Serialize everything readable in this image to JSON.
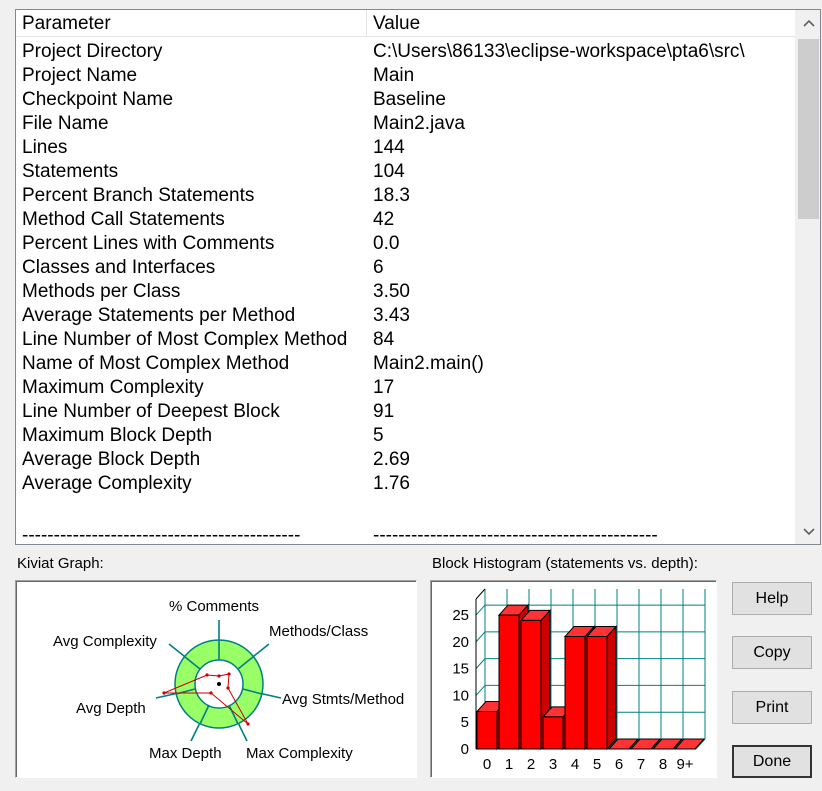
{
  "table": {
    "headers": [
      "Parameter",
      "Value"
    ],
    "rows": [
      [
        "Project Directory",
        "C:\\Users\\86133\\eclipse-workspace\\pta6\\src\\"
      ],
      [
        "Project Name",
        "Main"
      ],
      [
        "Checkpoint Name",
        "Baseline"
      ],
      [
        "File Name",
        "Main2.java"
      ],
      [
        "Lines",
        "144"
      ],
      [
        "Statements",
        "104"
      ],
      [
        "Percent Branch Statements",
        "18.3"
      ],
      [
        "Method Call Statements",
        "42"
      ],
      [
        "Percent Lines with Comments",
        "0.0"
      ],
      [
        "Classes and Interfaces",
        "6"
      ],
      [
        "Methods per Class",
        "3.50"
      ],
      [
        "Average Statements per Method",
        "3.43"
      ],
      [
        "Line Number of Most Complex Method",
        "84"
      ],
      [
        "Name of Most Complex Method",
        "Main2.main()"
      ],
      [
        "Maximum Complexity",
        "17"
      ],
      [
        "Line Number of Deepest Block",
        "91"
      ],
      [
        "Maximum Block Depth",
        "5"
      ],
      [
        "Average Block Depth",
        "2.69"
      ],
      [
        "Average Complexity",
        "1.76"
      ]
    ],
    "separator_left": "--------------------------------------------",
    "separator_right": "---------------------------------------------",
    "scroll_up_icon": "chevron-up",
    "scroll_down_icon": "chevron-down"
  },
  "kiviat": {
    "title": "Kiviat Graph:",
    "axes": [
      "% Comments",
      "Methods/Class",
      "Avg Stmts/Method",
      "Max Complexity",
      "Max Depth",
      "Avg Depth",
      "Avg Complexity"
    ]
  },
  "histogram": {
    "title": "Block Histogram (statements vs. depth):"
  },
  "buttons": {
    "help": "Help",
    "copy": "Copy",
    "print": "Print",
    "done": "Done"
  },
  "colors": {
    "bar": "#ff0000",
    "grid": "#008080",
    "ring_green": "#99ff66",
    "spoke": "#008080",
    "plot_line": "#cc0000"
  },
  "chart_data": {
    "type": "bar",
    "categories": [
      "0",
      "1",
      "2",
      "3",
      "4",
      "5",
      "6",
      "7",
      "8",
      "9+"
    ],
    "values": [
      7,
      25,
      24,
      6,
      21,
      21,
      0,
      0,
      0,
      0
    ],
    "yticks": [
      0,
      5,
      10,
      15,
      20,
      25
    ],
    "ylim": [
      0,
      28
    ],
    "grid": true
  }
}
